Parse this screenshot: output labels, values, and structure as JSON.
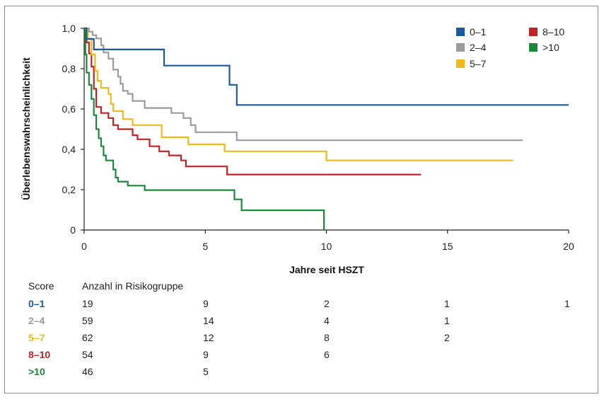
{
  "chart_data": {
    "type": "line",
    "xlabel": "Jahre seit HSZT",
    "ylabel": "Überlebenswahrscheinlichkeit",
    "xlim": [
      0,
      20
    ],
    "ylim": [
      0,
      1
    ],
    "x_ticks": [
      "0",
      "5",
      "10",
      "15",
      "20"
    ],
    "y_ticks": [
      "0",
      "0,2",
      "0,4",
      "0,6",
      "0,8",
      "1,0"
    ],
    "legend_position": "top-right",
    "series": [
      {
        "name": "0–1",
        "color": "#1a5aa0",
        "points": [
          [
            0,
            1
          ],
          [
            0.1,
            1
          ],
          [
            0.1,
            0.947
          ],
          [
            0.4,
            0.947
          ],
          [
            0.4,
            0.895
          ],
          [
            3.3,
            0.895
          ],
          [
            3.3,
            0.815
          ],
          [
            6.0,
            0.815
          ],
          [
            6.0,
            0.72
          ],
          [
            6.3,
            0.72
          ],
          [
            6.3,
            0.62
          ],
          [
            20,
            0.62
          ]
        ]
      },
      {
        "name": "2–4",
        "color": "#9b9b9b",
        "points": [
          [
            0,
            1
          ],
          [
            0.2,
            1
          ],
          [
            0.2,
            0.983
          ],
          [
            0.35,
            0.983
          ],
          [
            0.35,
            0.966
          ],
          [
            0.5,
            0.966
          ],
          [
            0.5,
            0.95
          ],
          [
            0.7,
            0.95
          ],
          [
            0.7,
            0.915
          ],
          [
            0.8,
            0.915
          ],
          [
            0.8,
            0.88
          ],
          [
            1.0,
            0.88
          ],
          [
            1.0,
            0.85
          ],
          [
            1.2,
            0.85
          ],
          [
            1.2,
            0.795
          ],
          [
            1.4,
            0.795
          ],
          [
            1.4,
            0.76
          ],
          [
            1.5,
            0.76
          ],
          [
            1.5,
            0.725
          ],
          [
            1.6,
            0.725
          ],
          [
            1.6,
            0.69
          ],
          [
            1.8,
            0.69
          ],
          [
            1.8,
            0.675
          ],
          [
            2.0,
            0.675
          ],
          [
            2.0,
            0.64
          ],
          [
            2.5,
            0.64
          ],
          [
            2.5,
            0.605
          ],
          [
            3.6,
            0.605
          ],
          [
            3.6,
            0.58
          ],
          [
            4.1,
            0.58
          ],
          [
            4.1,
            0.555
          ],
          [
            4.4,
            0.555
          ],
          [
            4.4,
            0.52
          ],
          [
            4.6,
            0.52
          ],
          [
            4.6,
            0.485
          ],
          [
            6.3,
            0.485
          ],
          [
            6.3,
            0.445
          ],
          [
            18.1,
            0.445
          ]
        ]
      },
      {
        "name": "5–7",
        "color": "#f0b917",
        "points": [
          [
            0,
            1
          ],
          [
            0.15,
            1
          ],
          [
            0.15,
            0.95
          ],
          [
            0.3,
            0.95
          ],
          [
            0.3,
            0.87
          ],
          [
            0.45,
            0.87
          ],
          [
            0.45,
            0.79
          ],
          [
            0.55,
            0.79
          ],
          [
            0.55,
            0.74
          ],
          [
            0.7,
            0.74
          ],
          [
            0.7,
            0.705
          ],
          [
            1.0,
            0.705
          ],
          [
            1.0,
            0.675
          ],
          [
            1.1,
            0.675
          ],
          [
            1.1,
            0.625
          ],
          [
            1.2,
            0.625
          ],
          [
            1.2,
            0.59
          ],
          [
            1.6,
            0.59
          ],
          [
            1.6,
            0.55
          ],
          [
            2.0,
            0.55
          ],
          [
            2.0,
            0.52
          ],
          [
            3.2,
            0.52
          ],
          [
            3.2,
            0.46
          ],
          [
            4.3,
            0.46
          ],
          [
            4.3,
            0.425
          ],
          [
            5.8,
            0.425
          ],
          [
            5.8,
            0.39
          ],
          [
            10.0,
            0.39
          ],
          [
            10.0,
            0.345
          ],
          [
            17.7,
            0.345
          ]
        ]
      },
      {
        "name": "8–10",
        "color": "#c42127",
        "points": [
          [
            0,
            1
          ],
          [
            0.1,
            1
          ],
          [
            0.1,
            0.93
          ],
          [
            0.2,
            0.93
          ],
          [
            0.2,
            0.875
          ],
          [
            0.3,
            0.875
          ],
          [
            0.3,
            0.81
          ],
          [
            0.4,
            0.81
          ],
          [
            0.4,
            0.7
          ],
          [
            0.5,
            0.7
          ],
          [
            0.5,
            0.61
          ],
          [
            0.7,
            0.61
          ],
          [
            0.7,
            0.58
          ],
          [
            1.0,
            0.58
          ],
          [
            1.0,
            0.555
          ],
          [
            1.2,
            0.555
          ],
          [
            1.2,
            0.52
          ],
          [
            1.4,
            0.52
          ],
          [
            1.4,
            0.5
          ],
          [
            2.0,
            0.5
          ],
          [
            2.0,
            0.47
          ],
          [
            2.2,
            0.47
          ],
          [
            2.2,
            0.45
          ],
          [
            2.7,
            0.45
          ],
          [
            2.7,
            0.415
          ],
          [
            3.1,
            0.415
          ],
          [
            3.1,
            0.39
          ],
          [
            3.5,
            0.39
          ],
          [
            3.5,
            0.37
          ],
          [
            4.0,
            0.37
          ],
          [
            4.0,
            0.345
          ],
          [
            4.2,
            0.345
          ],
          [
            4.2,
            0.315
          ],
          [
            5.9,
            0.315
          ],
          [
            5.9,
            0.275
          ],
          [
            13.9,
            0.275
          ]
        ]
      },
      {
        "name": ">10",
        "color": "#1a8a3a",
        "points": [
          [
            0,
            1
          ],
          [
            0.05,
            1
          ],
          [
            0.05,
            0.87
          ],
          [
            0.1,
            0.87
          ],
          [
            0.1,
            0.78
          ],
          [
            0.2,
            0.78
          ],
          [
            0.2,
            0.72
          ],
          [
            0.3,
            0.72
          ],
          [
            0.3,
            0.65
          ],
          [
            0.4,
            0.65
          ],
          [
            0.4,
            0.57
          ],
          [
            0.5,
            0.57
          ],
          [
            0.5,
            0.5
          ],
          [
            0.6,
            0.5
          ],
          [
            0.6,
            0.455
          ],
          [
            0.7,
            0.455
          ],
          [
            0.7,
            0.415
          ],
          [
            0.8,
            0.415
          ],
          [
            0.8,
            0.37
          ],
          [
            0.9,
            0.37
          ],
          [
            0.9,
            0.345
          ],
          [
            1.2,
            0.345
          ],
          [
            1.2,
            0.3
          ],
          [
            1.3,
            0.3
          ],
          [
            1.3,
            0.26
          ],
          [
            1.4,
            0.26
          ],
          [
            1.4,
            0.24
          ],
          [
            1.8,
            0.24
          ],
          [
            1.8,
            0.22
          ],
          [
            2.5,
            0.22
          ],
          [
            2.5,
            0.198
          ],
          [
            6.2,
            0.198
          ],
          [
            6.2,
            0.152
          ],
          [
            6.5,
            0.152
          ],
          [
            6.5,
            0.098
          ],
          [
            9.9,
            0.098
          ],
          [
            9.9,
            0
          ]
        ]
      }
    ],
    "risk_table": {
      "header_score": "Score",
      "header_count": "Anzahl in Risikogruppe",
      "rows": [
        {
          "score": "0–1",
          "color": "#1a5aa0",
          "counts": [
            "19",
            "9",
            "2",
            "1",
            "1"
          ]
        },
        {
          "score": "2–4",
          "color": "#9b9b9b",
          "counts": [
            "59",
            "14",
            "4",
            "1"
          ]
        },
        {
          "score": "5–7",
          "color": "#f0b917",
          "counts": [
            "62",
            "12",
            "8",
            "2"
          ]
        },
        {
          "score": "8–10",
          "color": "#c42127",
          "counts": [
            "54",
            "9",
            "6"
          ]
        },
        {
          "score": ">10",
          "color": "#1a8a3a",
          "counts": [
            "46",
            "5"
          ]
        }
      ]
    }
  }
}
